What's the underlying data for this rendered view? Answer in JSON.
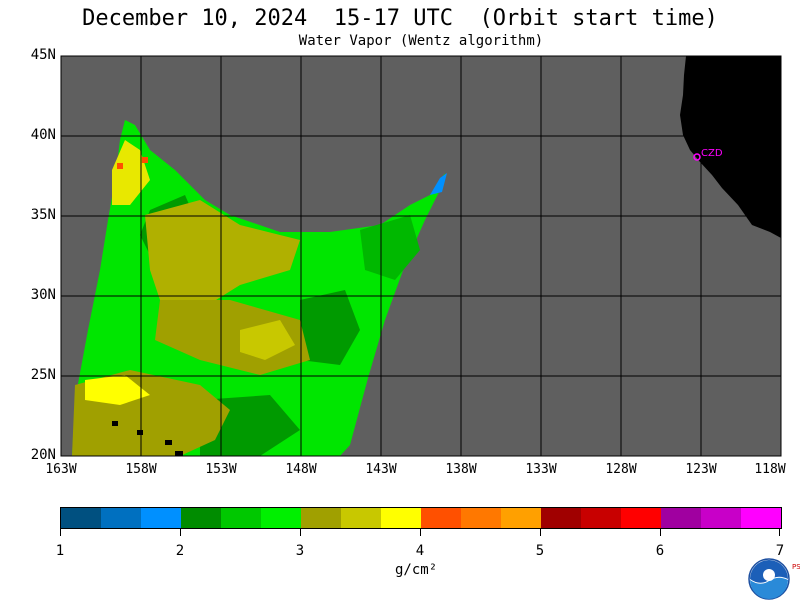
{
  "title": "December 10, 2024  15-17 UTC  (Orbit start time)",
  "subtitle": "Water Vapor (Wentz algorithm)",
  "lat_labels": [
    "45N",
    "40N",
    "35N",
    "30N",
    "25N",
    "20N"
  ],
  "lon_labels": [
    "163W",
    "158W",
    "153W",
    "148W",
    "143W",
    "138W",
    "133W",
    "128W",
    "123W",
    "118W"
  ],
  "station_label": "CZD",
  "colorbar": {
    "colors": [
      "#005080",
      "#0070c0",
      "#0090ff",
      "#008c00",
      "#00c800",
      "#00f000",
      "#a0a000",
      "#c8c800",
      "#ffff00",
      "#ff5000",
      "#ff7800",
      "#ffa000",
      "#a00000",
      "#c80000",
      "#ff0000",
      "#a000a0",
      "#c800c8",
      "#ff00ff"
    ],
    "tick_labels": [
      "1",
      "2",
      "3",
      "4",
      "5",
      "6",
      "7"
    ],
    "unit": "g/cm²"
  },
  "logo": {
    "name": "NOAA",
    "side_text": "PSL"
  },
  "colors": {
    "background_gray": "#5f5f5f",
    "land": "#000000",
    "grid": "#000000",
    "station": "#ff00ff"
  }
}
